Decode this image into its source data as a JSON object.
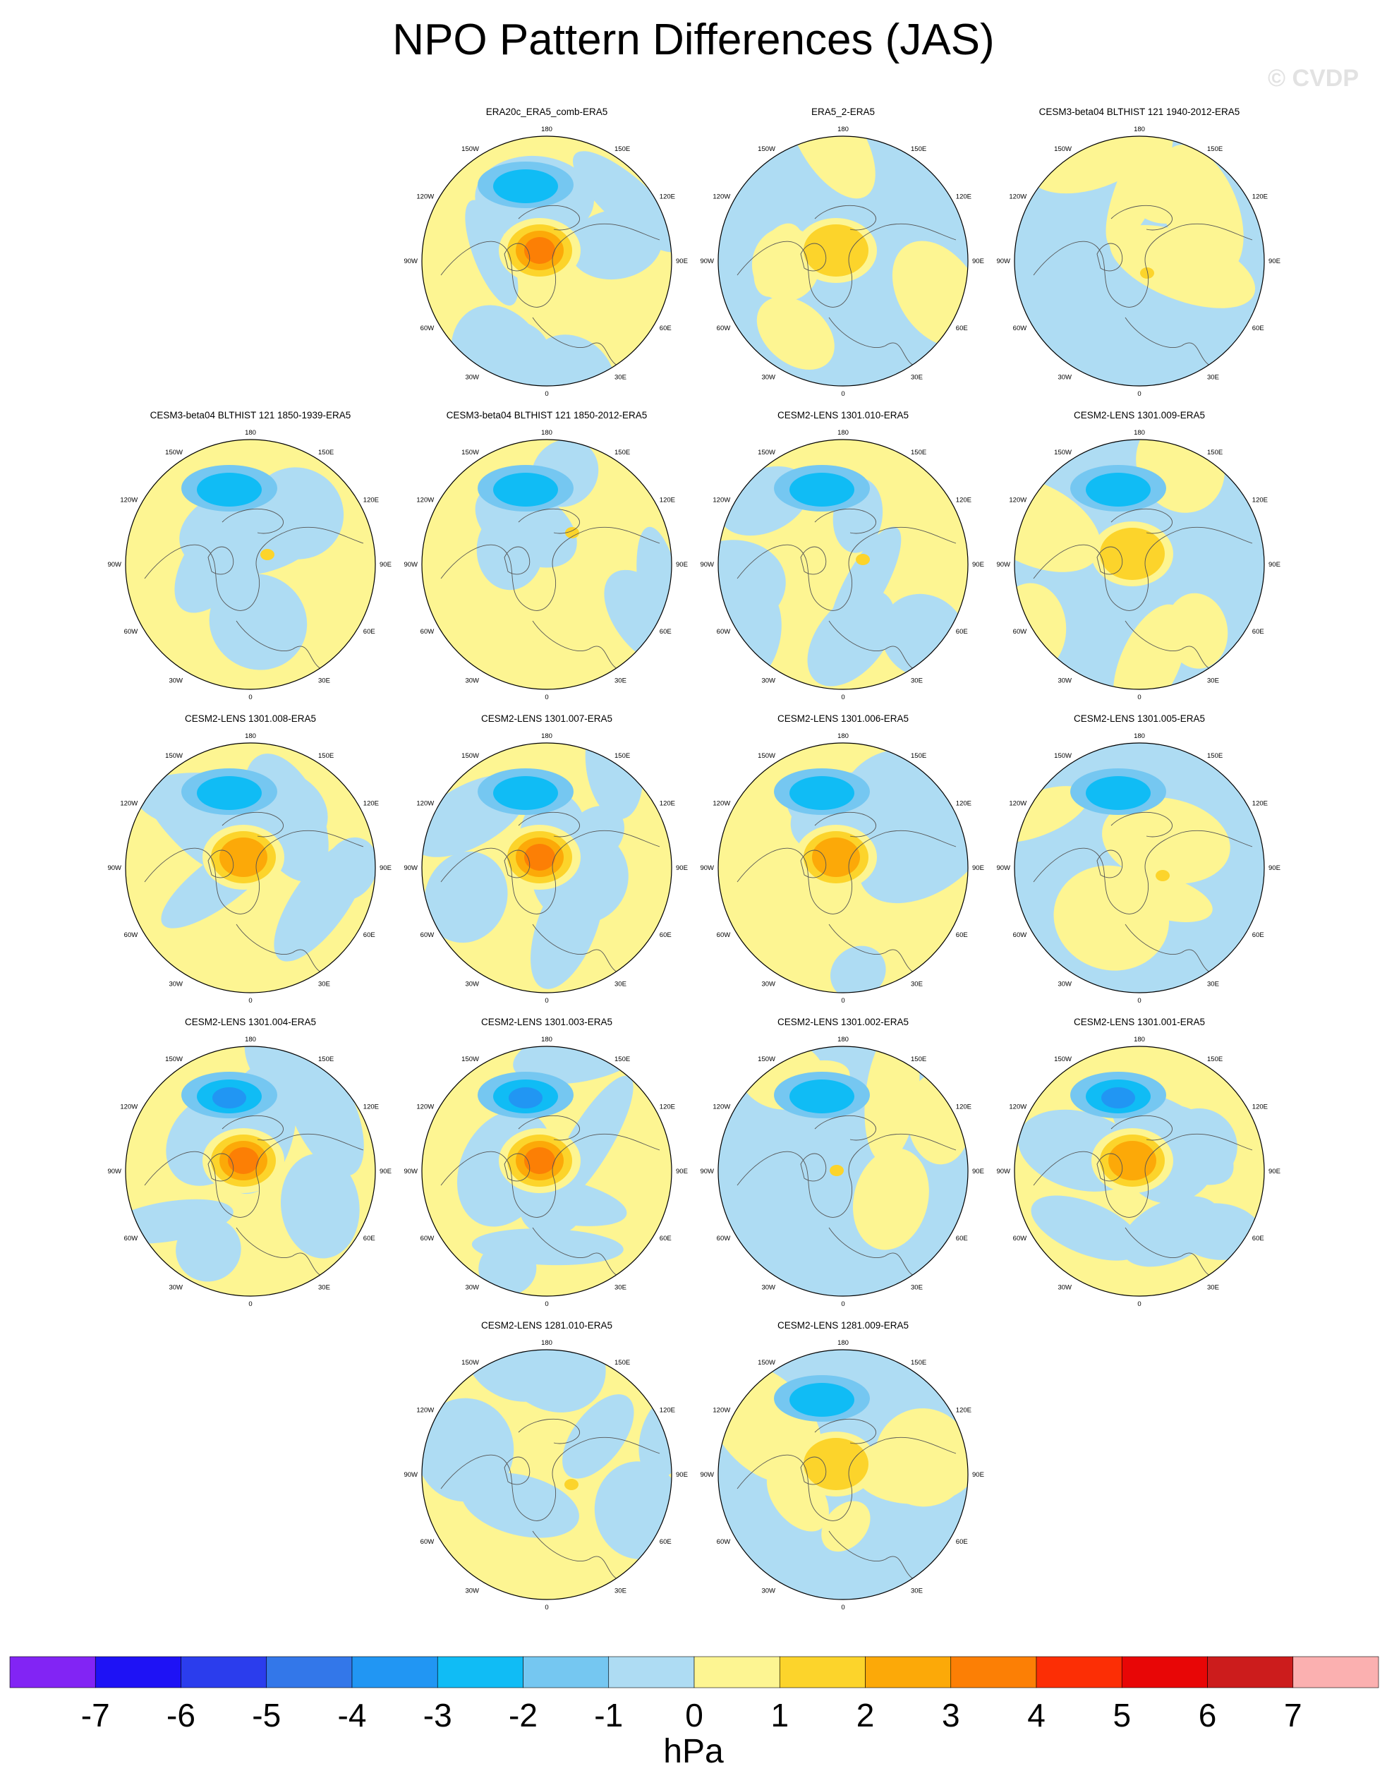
{
  "title": "NPO Pattern Differences (JAS)",
  "watermark": "© CVDP",
  "units": "hPa",
  "colorbar": {
    "labels": [
      "-7",
      "-6",
      "-5",
      "-4",
      "-3",
      "-2",
      "-1",
      "0",
      "1",
      "2",
      "3",
      "4",
      "5",
      "6",
      "7"
    ],
    "colors": [
      "#8224f4",
      "#1e12f5",
      "#2b3ded",
      "#3377e9",
      "#2196f3",
      "#10bcf5",
      "#75c7f1",
      "#aedcf3",
      "#fdf592",
      "#fcd42b",
      "#fca908",
      "#fc7f05",
      "#fc2e05",
      "#e80606",
      "#cc1c1c",
      "#fbb0b0"
    ]
  },
  "chart_data": [
    {
      "type": "heatmap",
      "title": "ERA20c_ERA5_comb-ERA5",
      "dominant": "mixed",
      "max": 4,
      "min": -2
    },
    {
      "type": "heatmap",
      "title": "ERA5_2-ERA5",
      "dominant": "negative",
      "max": 2,
      "min": -1
    },
    {
      "type": "heatmap",
      "title": "CESM3-beta04 BLTHIST 121 1940-2012-ERA5",
      "dominant": "negative",
      "max": 1,
      "min": -1
    },
    {
      "type": "heatmap",
      "title": "CESM3-beta04 BLTHIST 121 1850-1939-ERA5",
      "dominant": "positive",
      "max": 1,
      "min": -2
    },
    {
      "type": "heatmap",
      "title": "CESM3-beta04 BLTHIST 121 1850-2012-ERA5",
      "dominant": "positive",
      "max": 1,
      "min": -2
    },
    {
      "type": "heatmap",
      "title": "CESM2-LENS 1301.010-ERA5",
      "dominant": "mixed",
      "max": 1,
      "min": -2
    },
    {
      "type": "heatmap",
      "title": "CESM2-LENS 1301.009-ERA5",
      "dominant": "negative",
      "max": 2,
      "min": -2
    },
    {
      "type": "heatmap",
      "title": "CESM2-LENS 1301.008-ERA5",
      "dominant": "mixed",
      "max": 3,
      "min": -2
    },
    {
      "type": "heatmap",
      "title": "CESM2-LENS 1301.007-ERA5",
      "dominant": "mixed",
      "max": 4,
      "min": -2
    },
    {
      "type": "heatmap",
      "title": "CESM2-LENS 1301.006-ERA5",
      "dominant": "mixed",
      "max": 3,
      "min": -2
    },
    {
      "type": "heatmap",
      "title": "CESM2-LENS 1301.005-ERA5",
      "dominant": "negative",
      "max": 1,
      "min": -2
    },
    {
      "type": "heatmap",
      "title": "CESM2-LENS 1301.004-ERA5",
      "dominant": "mixed",
      "max": 4,
      "min": -3
    },
    {
      "type": "heatmap",
      "title": "CESM2-LENS 1301.003-ERA5",
      "dominant": "mixed",
      "max": 4,
      "min": -3
    },
    {
      "type": "heatmap",
      "title": "CESM2-LENS 1301.002-ERA5",
      "dominant": "negative",
      "max": 1,
      "min": -2
    },
    {
      "type": "heatmap",
      "title": "CESM2-LENS 1301.001-ERA5",
      "dominant": "mixed",
      "max": 3,
      "min": -3
    },
    {
      "type": "heatmap",
      "title": "CESM2-LENS 1281.010-ERA5",
      "dominant": "mixed",
      "max": 1,
      "min": -1
    },
    {
      "type": "heatmap",
      "title": "CESM2-LENS 1281.009-ERA5",
      "dominant": "negative",
      "max": 2,
      "min": -2
    }
  ],
  "map_ticks": {
    "top": "180",
    "bottom": "0",
    "left": "90W",
    "right": "90E",
    "upper_left": "150W",
    "upper_right": "150E",
    "mid_upper_left": "120W",
    "mid_upper_right": "120E",
    "mid_lower_left": "60W",
    "mid_lower_right": "60E",
    "lower_left": "30W",
    "lower_right": "30E"
  }
}
